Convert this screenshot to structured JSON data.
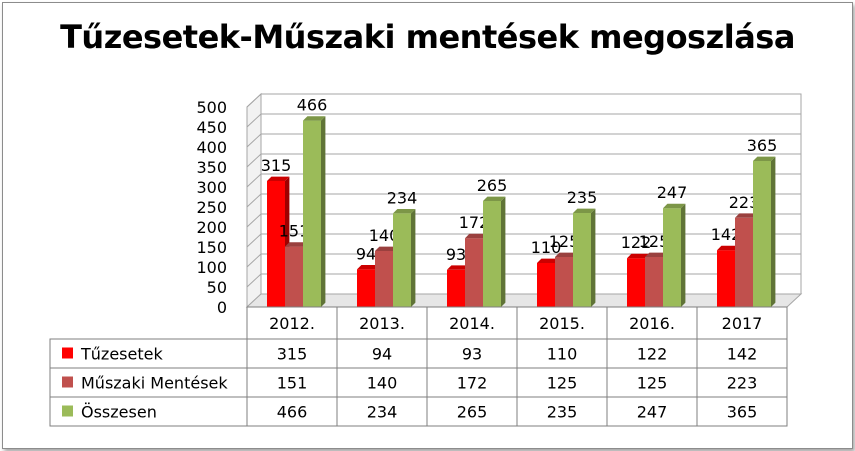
{
  "chart_data": {
    "type": "bar",
    "title": "Tűzesetek-Műszaki mentések megoszlása",
    "categories": [
      "2012.",
      "2013.",
      "2014.",
      "2015.",
      "2016.",
      "2017"
    ],
    "series": [
      {
        "name": "Tűzesetek",
        "values": [
          315,
          94,
          93,
          110,
          122,
          142
        ],
        "color": "#ff0000"
      },
      {
        "name": "Műszaki Mentések",
        "values": [
          151,
          140,
          172,
          125,
          125,
          223
        ],
        "color": "#c0504d"
      },
      {
        "name": "Összesen",
        "values": [
          466,
          234,
          265,
          235,
          247,
          365
        ],
        "color": "#9bbb59"
      }
    ],
    "data_labels": {
      "Tűzesetek": [
        "315",
        "94",
        "93",
        "110",
        "122",
        "142"
      ],
      "Műszaki Mentések": [
        "151",
        "140",
        "172",
        "125",
        "125",
        "223"
      ],
      "Összesen": [
        "466",
        "234",
        "265",
        "235",
        "247",
        "365"
      ]
    },
    "ylim": [
      0,
      500
    ],
    "yticks": [
      "0",
      "50",
      "100",
      "150",
      "200",
      "250",
      "300",
      "350",
      "400",
      "450",
      "500"
    ],
    "gridlines": true,
    "data_table": true,
    "style": "3d-clustered-column"
  }
}
